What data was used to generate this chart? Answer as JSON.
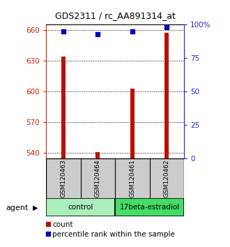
{
  "title": "GDS2311 / rc_AA891314_at",
  "samples": [
    "GSM120463",
    "GSM120464",
    "GSM120461",
    "GSM120462"
  ],
  "counts": [
    634,
    541,
    603,
    657
  ],
  "percentiles": [
    95,
    93,
    95,
    98
  ],
  "ylim_left": [
    535,
    665
  ],
  "ylim_right": [
    0,
    100
  ],
  "yticks_left": [
    540,
    570,
    600,
    630,
    660
  ],
  "yticks_right": [
    0,
    25,
    50,
    75,
    100
  ],
  "groups": [
    {
      "label": "control",
      "samples": [
        0,
        1
      ],
      "color": "#aaeebb"
    },
    {
      "label": "17beta-estradiol",
      "samples": [
        2,
        3
      ],
      "color": "#44dd66"
    }
  ],
  "group_row_label": "agent",
  "bar_color": "#bb1100",
  "dot_color": "#0000bb",
  "bar_width": 0.12,
  "left_tick_color": "#cc2200",
  "right_tick_color": "#2222cc",
  "background_color": "#ffffff",
  "plot_bg_color": "#ffffff",
  "grid_color": "#000000",
  "sample_box_color": "#cccccc",
  "legend_count_label": "count",
  "legend_pct_label": "percentile rank within the sample"
}
